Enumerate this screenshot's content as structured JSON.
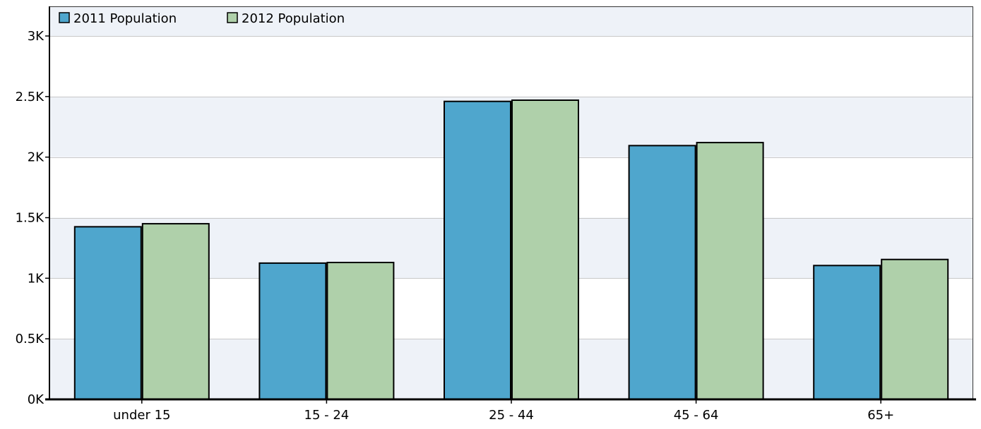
{
  "chart_data": {
    "type": "bar",
    "categories": [
      "under 15",
      "15 - 24",
      "25 - 44",
      "45 - 64",
      "65+"
    ],
    "series": [
      {
        "name": "2011 Population",
        "values": [
          1425,
          1125,
          2460,
          2095,
          1105
        ],
        "color": "#4fa6cd"
      },
      {
        "name": "2012 Population",
        "values": [
          1450,
          1130,
          2470,
          2120,
          1155
        ],
        "color": "#afd0aa"
      }
    ],
    "title": "",
    "xlabel": "",
    "ylabel": "",
    "ylim": [
      0,
      3000
    ],
    "yticks": [
      {
        "value": 0,
        "label": "0K"
      },
      {
        "value": 500,
        "label": "0.5K"
      },
      {
        "value": 1000,
        "label": "1K"
      },
      {
        "value": 1500,
        "label": "1.5K"
      },
      {
        "value": 2000,
        "label": "2K"
      },
      {
        "value": 2500,
        "label": "2.5K"
      },
      {
        "value": 3000,
        "label": "3K"
      }
    ],
    "grid": true,
    "band_colors": [
      "#eef2f8",
      "#ffffff"
    ],
    "gridline_color": "#c8c8c8",
    "legend_position": "top-left"
  }
}
